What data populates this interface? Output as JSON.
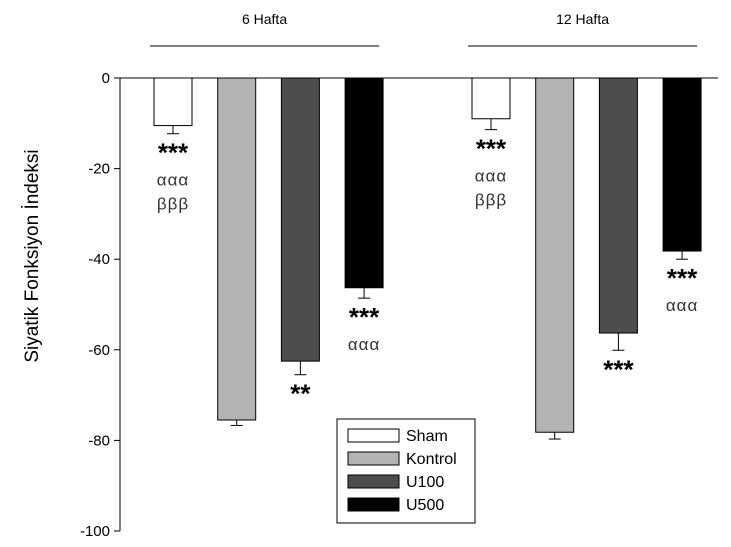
{
  "chart_data": {
    "type": "bar",
    "ylabel": "Siyatik Fonksiyon İndeksi",
    "ylim": [
      -100,
      0
    ],
    "yticks": [
      0,
      -20,
      -40,
      -60,
      -80,
      -100
    ],
    "groups": [
      "6 Hafta",
      "12 Hafta"
    ],
    "series": [
      {
        "name": "Sham",
        "color": "#ffffff",
        "values": [
          -10.5,
          -9.0
        ],
        "errors": [
          1.8,
          2.4
        ]
      },
      {
        "name": "Kontrol",
        "color": "#b3b3b3",
        "values": [
          -75.5,
          -78.2
        ],
        "errors": [
          1.2,
          1.5
        ]
      },
      {
        "name": "U100",
        "color": "#4d4d4d",
        "values": [
          -62.5,
          -56.3
        ],
        "errors": [
          3.0,
          3.8
        ]
      },
      {
        "name": "U500",
        "color": "#000000",
        "values": [
          -46.3,
          -38.2
        ],
        "errors": [
          2.3,
          1.8
        ]
      }
    ],
    "annotations": [
      {
        "group": 0,
        "series": 0,
        "lines": [
          "***",
          "ααα",
          "βββ"
        ]
      },
      {
        "group": 0,
        "series": 2,
        "lines": [
          "**"
        ]
      },
      {
        "group": 0,
        "series": 3,
        "lines": [
          "***",
          "ααα"
        ]
      },
      {
        "group": 1,
        "series": 0,
        "lines": [
          "***",
          "ααα",
          "βββ"
        ]
      },
      {
        "group": 1,
        "series": 2,
        "lines": [
          "***"
        ]
      },
      {
        "group": 1,
        "series": 3,
        "lines": [
          "***",
          "ααα"
        ]
      }
    ],
    "legend_position": "bottom-center",
    "grid": false
  }
}
